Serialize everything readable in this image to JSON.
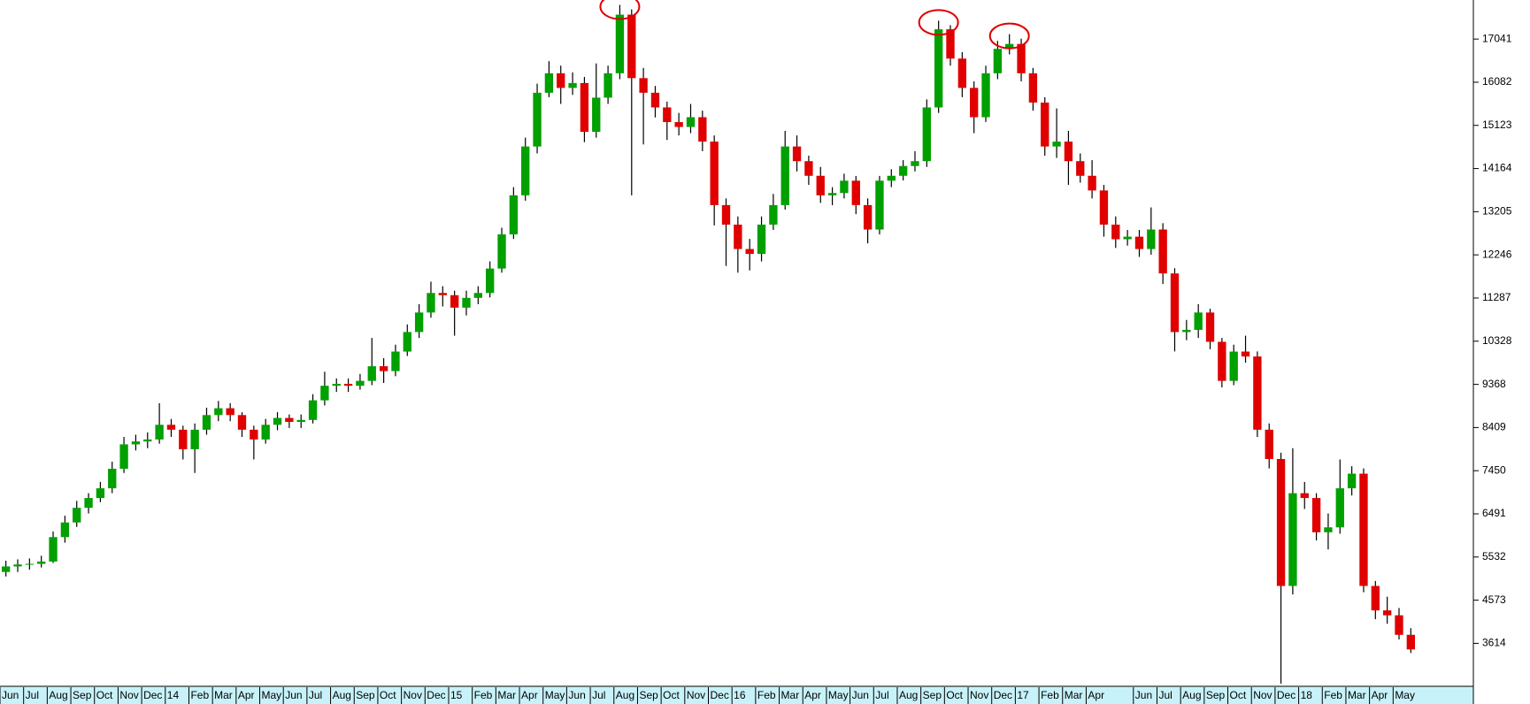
{
  "chart_data": {
    "type": "candlestick",
    "categories": [
      "Jun",
      null,
      "Jul",
      null,
      "Aug",
      null,
      "Sep",
      null,
      "Oct",
      null,
      "Nov",
      null,
      "Dec",
      null,
      "14",
      null,
      "Feb",
      null,
      "Mar",
      null,
      "Apr",
      null,
      "May",
      null,
      "Jun",
      null,
      "Jul",
      null,
      "Aug",
      null,
      "Sep",
      null,
      "Oct",
      null,
      "Nov",
      null,
      "Dec",
      null,
      "15",
      null,
      "Feb",
      null,
      "Mar",
      null,
      "Apr",
      null,
      "May",
      null,
      "Jun",
      null,
      "Jul",
      null,
      "Aug",
      null,
      "Sep",
      null,
      "Oct",
      null,
      "Nov",
      null,
      "Dec",
      null,
      "16",
      null,
      "Feb",
      null,
      "Mar",
      null,
      "Apr",
      null,
      "May",
      null,
      "Jun",
      null,
      "Jul",
      null,
      "Aug",
      null,
      "Sep",
      null,
      "Oct",
      null,
      "Nov",
      null,
      "Dec",
      null,
      "17",
      null,
      "Feb",
      null,
      "Mar",
      null,
      "Apr",
      null,
      null,
      null,
      "Jun",
      null,
      "Jul",
      null,
      "Aug",
      null,
      "Sep",
      null,
      "Oct",
      null,
      "Nov",
      null,
      "Dec",
      null,
      "18",
      null,
      "Feb",
      null,
      "Mar",
      null,
      "Apr",
      null,
      "May",
      null
    ],
    "open": [
      5200,
      5323,
      5366,
      5380,
      5432,
      5974,
      6300,
      6625,
      6843,
      7059,
      7493,
      8035,
      8100,
      8144,
      8470,
      8361,
      7927,
      8361,
      8686,
      8838,
      8686,
      8361,
      8144,
      8470,
      8622,
      8535,
      8578,
      9014,
      9337,
      9380,
      9337,
      9446,
      9771,
      9663,
      10097,
      10531,
      10965,
      11399,
      11350,
      11073,
      11290,
      11399,
      11942,
      12701,
      13569,
      14654,
      15848,
      16281,
      15956,
      16064,
      14979,
      15739,
      16281,
      17583,
      16173,
      15848,
      15522,
      15196,
      15088,
      15305,
      14762,
      13352,
      12918,
      12376,
      12267,
      12918,
      13352,
      14654,
      14328,
      14003,
      13569,
      13620,
      13894,
      13352,
      12809,
      13894,
      14003,
      14220,
      14328,
      15522,
      17258,
      16607,
      15956,
      15305,
      16281,
      16824,
      16932,
      16281,
      15630,
      14654,
      14762,
      14328,
      14003,
      13677,
      12918,
      12593,
      12650,
      12376,
      12809,
      11833,
      10531,
      10580,
      10965,
      10314,
      9446,
      10097,
      9988,
      8361,
      7710,
      4889,
      6950,
      6843,
      6082,
      6191,
      7059,
      7384,
      4889,
      4346,
      4237,
      3803
    ],
    "high": [
      5450,
      5480,
      5500,
      5560,
      6100,
      6450,
      6780,
      6950,
      7200,
      7650,
      8200,
      8250,
      8300,
      8950,
      8600,
      8450,
      8500,
      8850,
      9000,
      8950,
      8750,
      8450,
      8600,
      8750,
      8700,
      8700,
      9150,
      9650,
      9500,
      9500,
      9600,
      10400,
      9950,
      10250,
      10700,
      11150,
      11650,
      11550,
      11450,
      11450,
      11550,
      12100,
      12850,
      13750,
      14850,
      16050,
      16550,
      16450,
      16300,
      16200,
      16500,
      16450,
      17800,
      17700,
      16400,
      16000,
      15650,
      15400,
      15600,
      15450,
      14900,
      13500,
      13100,
      12600,
      13100,
      13600,
      15000,
      14900,
      14450,
      14200,
      13750,
      14050,
      14000,
      13500,
      14000,
      14150,
      14350,
      14550,
      15700,
      17450,
      17350,
      16750,
      16100,
      16450,
      17000,
      17150,
      17050,
      16400,
      15750,
      15500,
      15000,
      14500,
      14350,
      13800,
      13100,
      12800,
      12800,
      13300,
      12950,
      11950,
      10800,
      11150,
      11050,
      10400,
      10250,
      10450,
      10100,
      8500,
      7850,
      7950,
      7200,
      6950,
      6500,
      7700,
      7550,
      7500,
      5000,
      4650,
      4400,
      3950
    ],
    "low": [
      5100,
      5200,
      5250,
      5300,
      5400,
      5850,
      6200,
      6500,
      6750,
      6950,
      7400,
      7900,
      7950,
      8050,
      8200,
      7700,
      7400,
      8250,
      8550,
      8550,
      8200,
      7700,
      8050,
      8350,
      8400,
      8400,
      8500,
      8900,
      9200,
      9200,
      9250,
      9350,
      9400,
      9550,
      10000,
      10400,
      10850,
      11100,
      10450,
      10900,
      11150,
      11300,
      11850,
      12600,
      13450,
      14500,
      15750,
      15600,
      15800,
      14750,
      14850,
      15600,
      16150,
      13569,
      14700,
      15300,
      14800,
      14900,
      14950,
      14550,
      12900,
      12000,
      11850,
      11900,
      12100,
      12800,
      13250,
      14100,
      13800,
      13400,
      13350,
      13500,
      13150,
      12500,
      12700,
      13750,
      13900,
      14100,
      14200,
      15400,
      16450,
      15750,
      14950,
      15200,
      16150,
      16700,
      16100,
      15450,
      14450,
      14400,
      13800,
      13850,
      13500,
      12650,
      12400,
      12450,
      12200,
      12250,
      11600,
      10100,
      10350,
      10400,
      10150,
      9300,
      9350,
      9850,
      8200,
      7500,
      2719,
      4700,
      6600,
      5900,
      5700,
      6050,
      6900,
      4750,
      4150,
      4050,
      3700,
      3400
    ],
    "close": [
      5323,
      5366,
      5380,
      5432,
      5974,
      6300,
      6625,
      6843,
      7059,
      7493,
      8035,
      8100,
      8144,
      8470,
      8361,
      7927,
      8361,
      8686,
      8838,
      8686,
      8361,
      8144,
      8470,
      8622,
      8535,
      8578,
      9014,
      9337,
      9380,
      9337,
      9446,
      9771,
      9663,
      10097,
      10531,
      10965,
      11399,
      11350,
      11073,
      11290,
      11399,
      11942,
      12701,
      13569,
      14654,
      15848,
      16281,
      15956,
      16064,
      14979,
      15739,
      16281,
      17583,
      16173,
      15848,
      15522,
      15196,
      15088,
      15305,
      14762,
      13352,
      12918,
      12376,
      12267,
      12918,
      13352,
      14654,
      14328,
      14003,
      13569,
      13620,
      13894,
      13352,
      12809,
      13894,
      14003,
      14220,
      14328,
      15522,
      17258,
      16607,
      15956,
      15305,
      16281,
      16824,
      16932,
      16281,
      15630,
      14654,
      14762,
      14328,
      14003,
      13677,
      12918,
      12593,
      12650,
      12376,
      12809,
      11833,
      10531,
      10580,
      10965,
      10314,
      9446,
      10097,
      9988,
      8361,
      7710,
      4889,
      6950,
      6843,
      6082,
      6191,
      7059,
      7384,
      4889,
      4346,
      4237,
      3803,
      3478
    ],
    "up_color": "#00a000",
    "down_color": "#e00000",
    "wick_color": "#000000",
    "ylim": [
      2659,
      17909
    ],
    "yticks": [
      3614,
      4573,
      5532,
      6491,
      7450,
      8409,
      9368,
      10328,
      11287,
      12246,
      13205,
      14164,
      15123,
      16082,
      17041
    ]
  }
}
